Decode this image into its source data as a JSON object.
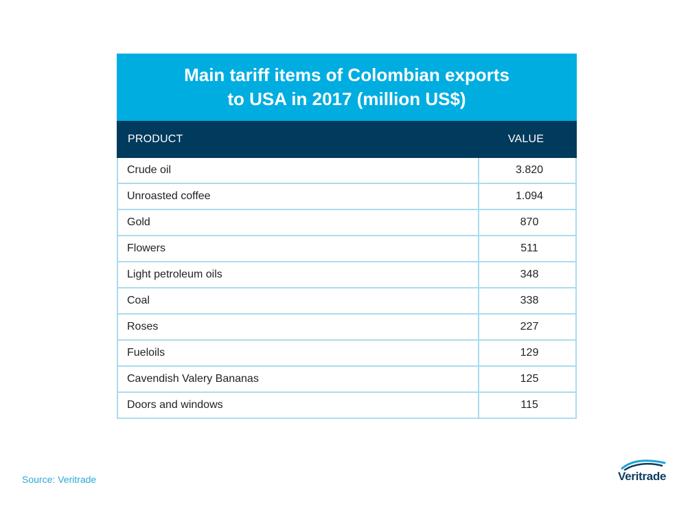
{
  "chart_data": {
    "type": "table",
    "title_lines": [
      "Main tariff items of Colombian exports",
      "to USA in 2017 (million US$)"
    ],
    "columns": [
      "PRODUCT",
      "VALUE"
    ],
    "rows": [
      {
        "product": "Crude oil",
        "value": "3.820"
      },
      {
        "product": "Unroasted coffee",
        "value": "1.094"
      },
      {
        "product": "Gold",
        "value": "870"
      },
      {
        "product": "Flowers",
        "value": "511"
      },
      {
        "product": "Light petroleum oils",
        "value": "348"
      },
      {
        "product": "Coal",
        "value": "338"
      },
      {
        "product": "Roses",
        "value": "227"
      },
      {
        "product": "Fueloils",
        "value": "129"
      },
      {
        "product": "Cavendish Valery Bananas",
        "value": "125"
      },
      {
        "product": "Doors and windows",
        "value": "115"
      }
    ]
  },
  "footer": {
    "source": "Source: Veritrade",
    "logo_text": "Veritrade"
  },
  "colors": {
    "title_bg": "#00ade0",
    "header_bg": "#003a5c",
    "grid": "#a9dcee",
    "source_text": "#29a8d6"
  }
}
